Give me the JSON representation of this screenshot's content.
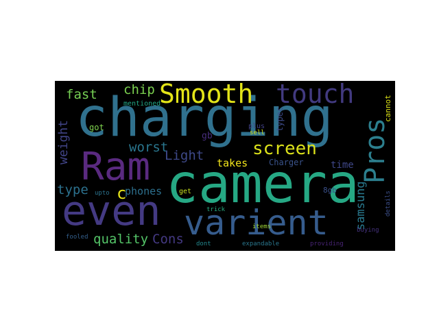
{
  "figure": {
    "type": "word-cloud",
    "background": "#000000",
    "words": [
      {
        "text": "charging",
        "color": "#30718e",
        "rotated": false
      },
      {
        "text": "camera",
        "color": "#26a884",
        "rotated": false
      },
      {
        "text": "Ram",
        "color": "#5a2a80",
        "rotated": false
      },
      {
        "text": "even",
        "color": "#443a83",
        "rotated": false
      },
      {
        "text": "varient",
        "color": "#365c8d",
        "rotated": false
      },
      {
        "text": "Smooth",
        "color": "#e3e418",
        "rotated": false
      },
      {
        "text": "touch",
        "color": "#423a80",
        "rotated": false
      },
      {
        "text": "Pros",
        "color": "#2c7f8e",
        "rotated": true
      },
      {
        "text": "screen",
        "color": "#dbe11a",
        "rotated": false
      },
      {
        "text": "fast",
        "color": "#76d054",
        "rotated": false
      },
      {
        "text": "chip",
        "color": "#7bd04f",
        "rotated": false
      },
      {
        "text": "weight",
        "color": "#414487",
        "rotated": true
      },
      {
        "text": "worst",
        "color": "#2a768e",
        "rotated": false
      },
      {
        "text": "Light",
        "color": "#3e4989",
        "rotated": false
      },
      {
        "text": "takes",
        "color": "#f2e51b",
        "rotated": false
      },
      {
        "text": "type",
        "color": "#2c718e",
        "rotated": false
      },
      {
        "text": "c",
        "color": "#e5e419",
        "rotated": false
      },
      {
        "text": "phones",
        "color": "#2d708e",
        "rotated": false
      },
      {
        "text": "quality",
        "color": "#54c568",
        "rotated": false
      },
      {
        "text": "Cons",
        "color": "#443983",
        "rotated": false
      },
      {
        "text": "samsung",
        "color": "#29798e",
        "rotated": true
      },
      {
        "text": "time",
        "color": "#3f4788",
        "rotated": false
      },
      {
        "text": "typec",
        "color": "#3e4c8a",
        "rotated": true
      },
      {
        "text": "Charger",
        "color": "#3a538b",
        "rotated": false
      },
      {
        "text": "cannot",
        "color": "#dde318",
        "rotated": true
      },
      {
        "text": "gb",
        "color": "#472e7c",
        "rotated": false
      },
      {
        "text": "got",
        "color": "#7fd34e",
        "rotated": false
      },
      {
        "text": "mentioned",
        "color": "#22a785",
        "rotated": false
      },
      {
        "text": "plus",
        "color": "#414287",
        "rotated": false
      },
      {
        "text": "sell",
        "color": "#d2e21b",
        "rotated": false
      },
      {
        "text": "8gb",
        "color": "#3b518b",
        "rotated": false
      },
      {
        "text": "get",
        "color": "#c8e020",
        "rotated": false
      },
      {
        "text": "upto",
        "color": "#2c738e",
        "rotated": false
      },
      {
        "text": "trick",
        "color": "#27ad81",
        "rotated": false
      },
      {
        "text": "details",
        "color": "#3c4f8a",
        "rotated": true
      },
      {
        "text": "items",
        "color": "#a2da37",
        "rotated": false
      },
      {
        "text": "buying",
        "color": "#46337f",
        "rotated": false
      },
      {
        "text": "fooled",
        "color": "#34608d",
        "rotated": false
      },
      {
        "text": "dont",
        "color": "#23888e",
        "rotated": false
      },
      {
        "text": "expandable",
        "color": "#2a778e",
        "rotated": false
      },
      {
        "text": "providing",
        "color": "#482475",
        "rotated": false
      }
    ]
  }
}
